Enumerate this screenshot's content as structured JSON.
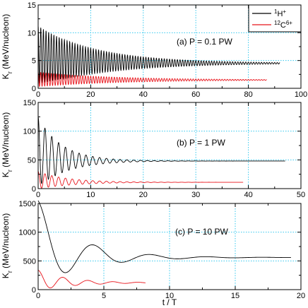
{
  "figure": {
    "ylabel": "K_r (MeV/nucleon)",
    "xlabel": "t / T"
  },
  "legend": {
    "position": "top-right of panel (a)",
    "entries": [
      {
        "mass": "1",
        "symbol": "H",
        "charge": "+",
        "color": "#000000"
      },
      {
        "mass": "12",
        "symbol": "C",
        "charge": "6+",
        "color": "#e8141b"
      }
    ]
  },
  "colors": {
    "proton": "#000000",
    "carbon": "#e8141b",
    "grid": "#33c8ee"
  },
  "chart_data": [
    {
      "type": "line",
      "label": "(a) P = 0.1 PW",
      "xlim": [
        0,
        100
      ],
      "ylim": [
        0,
        15
      ],
      "xticks": [
        0,
        20,
        40,
        60,
        80,
        100
      ],
      "yticks": [
        0,
        5,
        10,
        15
      ],
      "grid": true,
      "series": [
        {
          "name": "1H+",
          "color": "#000000",
          "x_end": 92,
          "period": 1,
          "start": 6,
          "final": 4.5,
          "amp0": 5.2,
          "decay": 25
        },
        {
          "name": "12C6+",
          "color": "#e8141b",
          "x_end": 87,
          "period": 1,
          "start": 1.6,
          "final": 1.5,
          "amp0": 1.3,
          "decay": 30
        }
      ]
    },
    {
      "type": "line",
      "label": "(b) P = 1 PW",
      "xlim": [
        0,
        50
      ],
      "ylim": [
        0,
        150
      ],
      "xticks": [
        0,
        10,
        20,
        30,
        40,
        50
      ],
      "yticks": [
        0,
        50,
        100,
        150
      ],
      "grid": true,
      "series": [
        {
          "name": "1H+",
          "color": "#000000",
          "x_end": 47,
          "period": 1.3,
          "start": 65,
          "final": 48,
          "amp0": 60,
          "decay": 5
        },
        {
          "name": "12C6+",
          "color": "#e8141b",
          "x_end": 39,
          "period": 1.3,
          "start": 15,
          "final": 11,
          "amp0": 15,
          "decay": 6
        }
      ]
    },
    {
      "type": "line",
      "label": "(c) P = 10 PW",
      "xlim": [
        0,
        20
      ],
      "ylim": [
        0,
        1500
      ],
      "xticks": [
        0,
        5,
        10,
        15,
        20
      ],
      "yticks": [
        0,
        500,
        1000,
        1500
      ],
      "grid": true,
      "series": [
        {
          "name": "1H+",
          "color": "#000000",
          "x_end": 19.3,
          "period": 4.3,
          "start": 850,
          "final": 560,
          "amp0": 700,
          "decay": 3.2
        },
        {
          "name": "12C6+",
          "color": "#e8141b",
          "x_end": 8.2,
          "period": 1.9,
          "start": 170,
          "final": 120,
          "amp0": 170,
          "decay": 2.5
        }
      ]
    }
  ]
}
